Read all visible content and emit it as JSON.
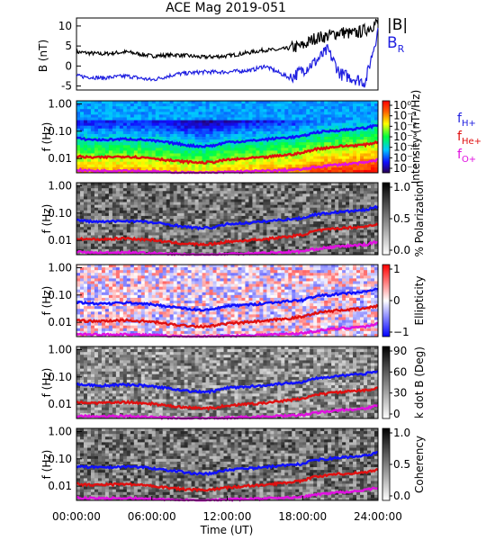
{
  "figure": {
    "title": "ACE Mag 2019-051",
    "xlabel": "Time (UT)",
    "xticks": [
      "00:00:00",
      "06:00:00",
      "12:00:00",
      "18:00:00",
      "24:00:00"
    ]
  },
  "chart_data": [
    {
      "type": "line",
      "panel": "field",
      "ylabel": "B (nT)",
      "ylim": [
        -6,
        12
      ],
      "yticks": [
        "10",
        "5",
        "0",
        "-5"
      ],
      "x_hours": [
        0,
        2,
        4,
        6,
        8,
        10,
        12,
        14,
        15,
        16,
        17,
        18,
        19,
        20,
        21,
        22,
        23,
        24
      ],
      "series": [
        {
          "name": "|B|",
          "color": "#000000",
          "values": [
            3.5,
            3,
            3.5,
            2.5,
            2.8,
            2.2,
            2.5,
            3.5,
            4,
            4,
            4.5,
            5,
            7,
            7.5,
            8.5,
            8,
            9,
            11
          ]
        },
        {
          "name": "B_R",
          "color": "#1f1fe0",
          "values": [
            -2.5,
            -3,
            -2.5,
            -3.5,
            -2,
            -1.5,
            -1.5,
            -1,
            0,
            -1.5,
            -3,
            -1,
            1,
            4,
            -2,
            -3,
            -4,
            9
          ]
        }
      ],
      "legend": [
        "|B|",
        "B"
      ],
      "legend_sub": [
        "",
        "R"
      ]
    },
    {
      "type": "heatmap",
      "panel": "intensity",
      "ylabel": "f (Hz)",
      "yticks": [
        "1.00",
        "0.10",
        "0.01"
      ],
      "colorbar": {
        "label": "Intensity (nT²/Hz)",
        "ticks": [
          "10⁰",
          "10⁻¹",
          "10⁻²",
          "10⁻³",
          "10⁻⁴",
          "10⁻⁵",
          "10⁻⁶"
        ]
      },
      "legend": [
        {
          "main": "f",
          "sub": "H+",
          "color": "#1f1fe0"
        },
        {
          "main": "f",
          "sub": "He+",
          "color": "#e01010"
        },
        {
          "main": "f",
          "sub": "O+",
          "color": "#e010e0"
        }
      ]
    },
    {
      "type": "heatmap",
      "panel": "polarization",
      "ylabel": "f (Hz)",
      "yticks": [
        "1.00",
        "0.10",
        "0.01"
      ],
      "colorbar": {
        "label": "% Polarization",
        "ticks": [
          "1.0",
          "0.5",
          "0.0"
        ]
      }
    },
    {
      "type": "heatmap",
      "panel": "ellipticity",
      "ylabel": "f (Hz)",
      "yticks": [
        "1.00",
        "0.10",
        "0.01"
      ],
      "colorbar": {
        "label": "Ellipticity",
        "ticks": [
          "1",
          "0",
          "−1"
        ]
      }
    },
    {
      "type": "heatmap",
      "panel": "kdotb",
      "ylabel": "f (Hz)",
      "yticks": [
        "1.00",
        "0.10",
        "0.01"
      ],
      "colorbar": {
        "label": "k dot B (Deg)",
        "ticks": [
          "90",
          "60",
          "30",
          "0"
        ]
      }
    },
    {
      "type": "heatmap",
      "panel": "coherency",
      "ylabel": "f (Hz)",
      "yticks": [
        "1.00",
        "0.10",
        "0.01"
      ],
      "colorbar": {
        "label": "Coherency",
        "ticks": [
          "1.0",
          "0.5",
          "0.0"
        ]
      }
    }
  ],
  "gyrofrequency": {
    "x_hours": [
      0,
      1,
      2,
      3,
      4,
      5,
      6,
      7,
      8,
      9,
      10,
      11,
      12,
      13,
      14,
      15,
      16,
      17,
      18,
      19,
      20,
      21,
      22,
      23,
      24
    ],
    "f_h_hz": [
      0.055,
      0.05,
      0.048,
      0.05,
      0.052,
      0.05,
      0.045,
      0.04,
      0.035,
      0.03,
      0.028,
      0.03,
      0.04,
      0.042,
      0.045,
      0.05,
      0.055,
      0.06,
      0.065,
      0.09,
      0.1,
      0.11,
      0.12,
      0.13,
      0.17
    ],
    "f_he_hz": [
      0.012,
      0.011,
      0.011,
      0.0115,
      0.012,
      0.011,
      0.0105,
      0.009,
      0.008,
      0.0075,
      0.007,
      0.0075,
      0.009,
      0.0095,
      0.0105,
      0.011,
      0.0125,
      0.014,
      0.016,
      0.022,
      0.025,
      0.028,
      0.03,
      0.032,
      0.04
    ],
    "f_o_hz": [
      0.0038,
      0.0036,
      0.0035,
      0.0036,
      0.0037,
      0.0035,
      0.0034,
      0.0032,
      0.0031,
      0.003,
      0.003,
      0.003,
      0.0032,
      0.0033,
      0.0034,
      0.0035,
      0.0036,
      0.0038,
      0.004,
      0.0048,
      0.0055,
      0.006,
      0.0065,
      0.007,
      0.009
    ]
  }
}
